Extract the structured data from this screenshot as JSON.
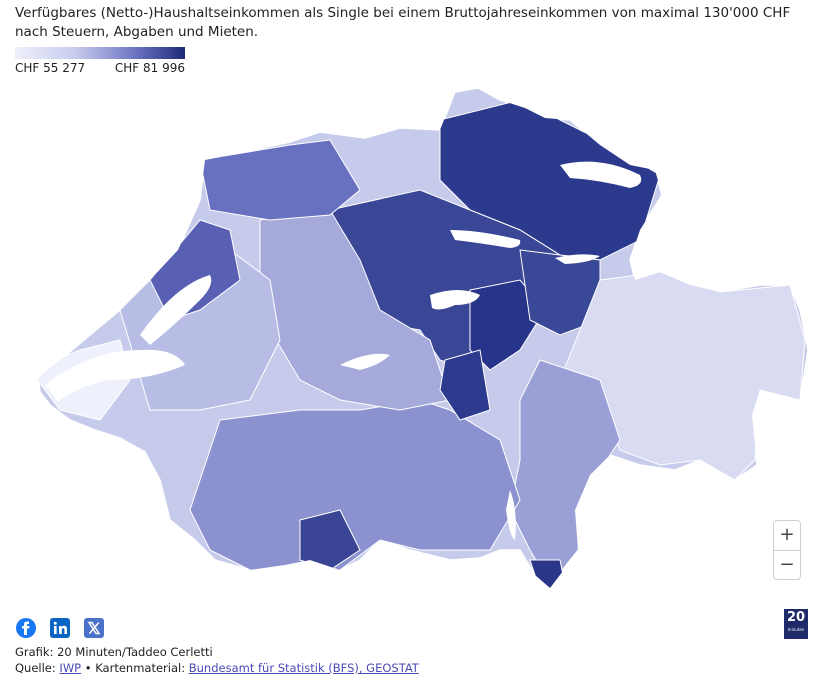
{
  "title": "Verfügbares (Netto-)Haushaltseinkommen als Single bei einem Bruttojahreseinkommen von maximal 130'000 CHF nach Steuern, Abgaben und Mieten.",
  "legend": {
    "min_label": "CHF 55 277",
    "max_label": "CHF 81 996",
    "colors": [
      "#eef0fb",
      "#c9cdee",
      "#6f76c4",
      "#1d2a78"
    ]
  },
  "map": {
    "region": "Switzerland",
    "fill_scale": "sequential-blue",
    "high_income_colors": "#1d2a78",
    "low_income_colors": "#eef0fb"
  },
  "zoom": {
    "in_label": "+",
    "out_label": "−"
  },
  "share": {
    "icons": [
      "facebook-icon",
      "linkedin-icon",
      "x-icon"
    ]
  },
  "credits": {
    "graphic_line": "Grafik: 20 Minuten/Taddeo Cerletti",
    "source_prefix": "Quelle: ",
    "source_link": "IWP",
    "separator": " • Kartenmaterial: ",
    "map_link": "Bundesamt für Statistik (BFS), GEOSTAT"
  },
  "logo": {
    "number": "20",
    "text": "minuten"
  }
}
